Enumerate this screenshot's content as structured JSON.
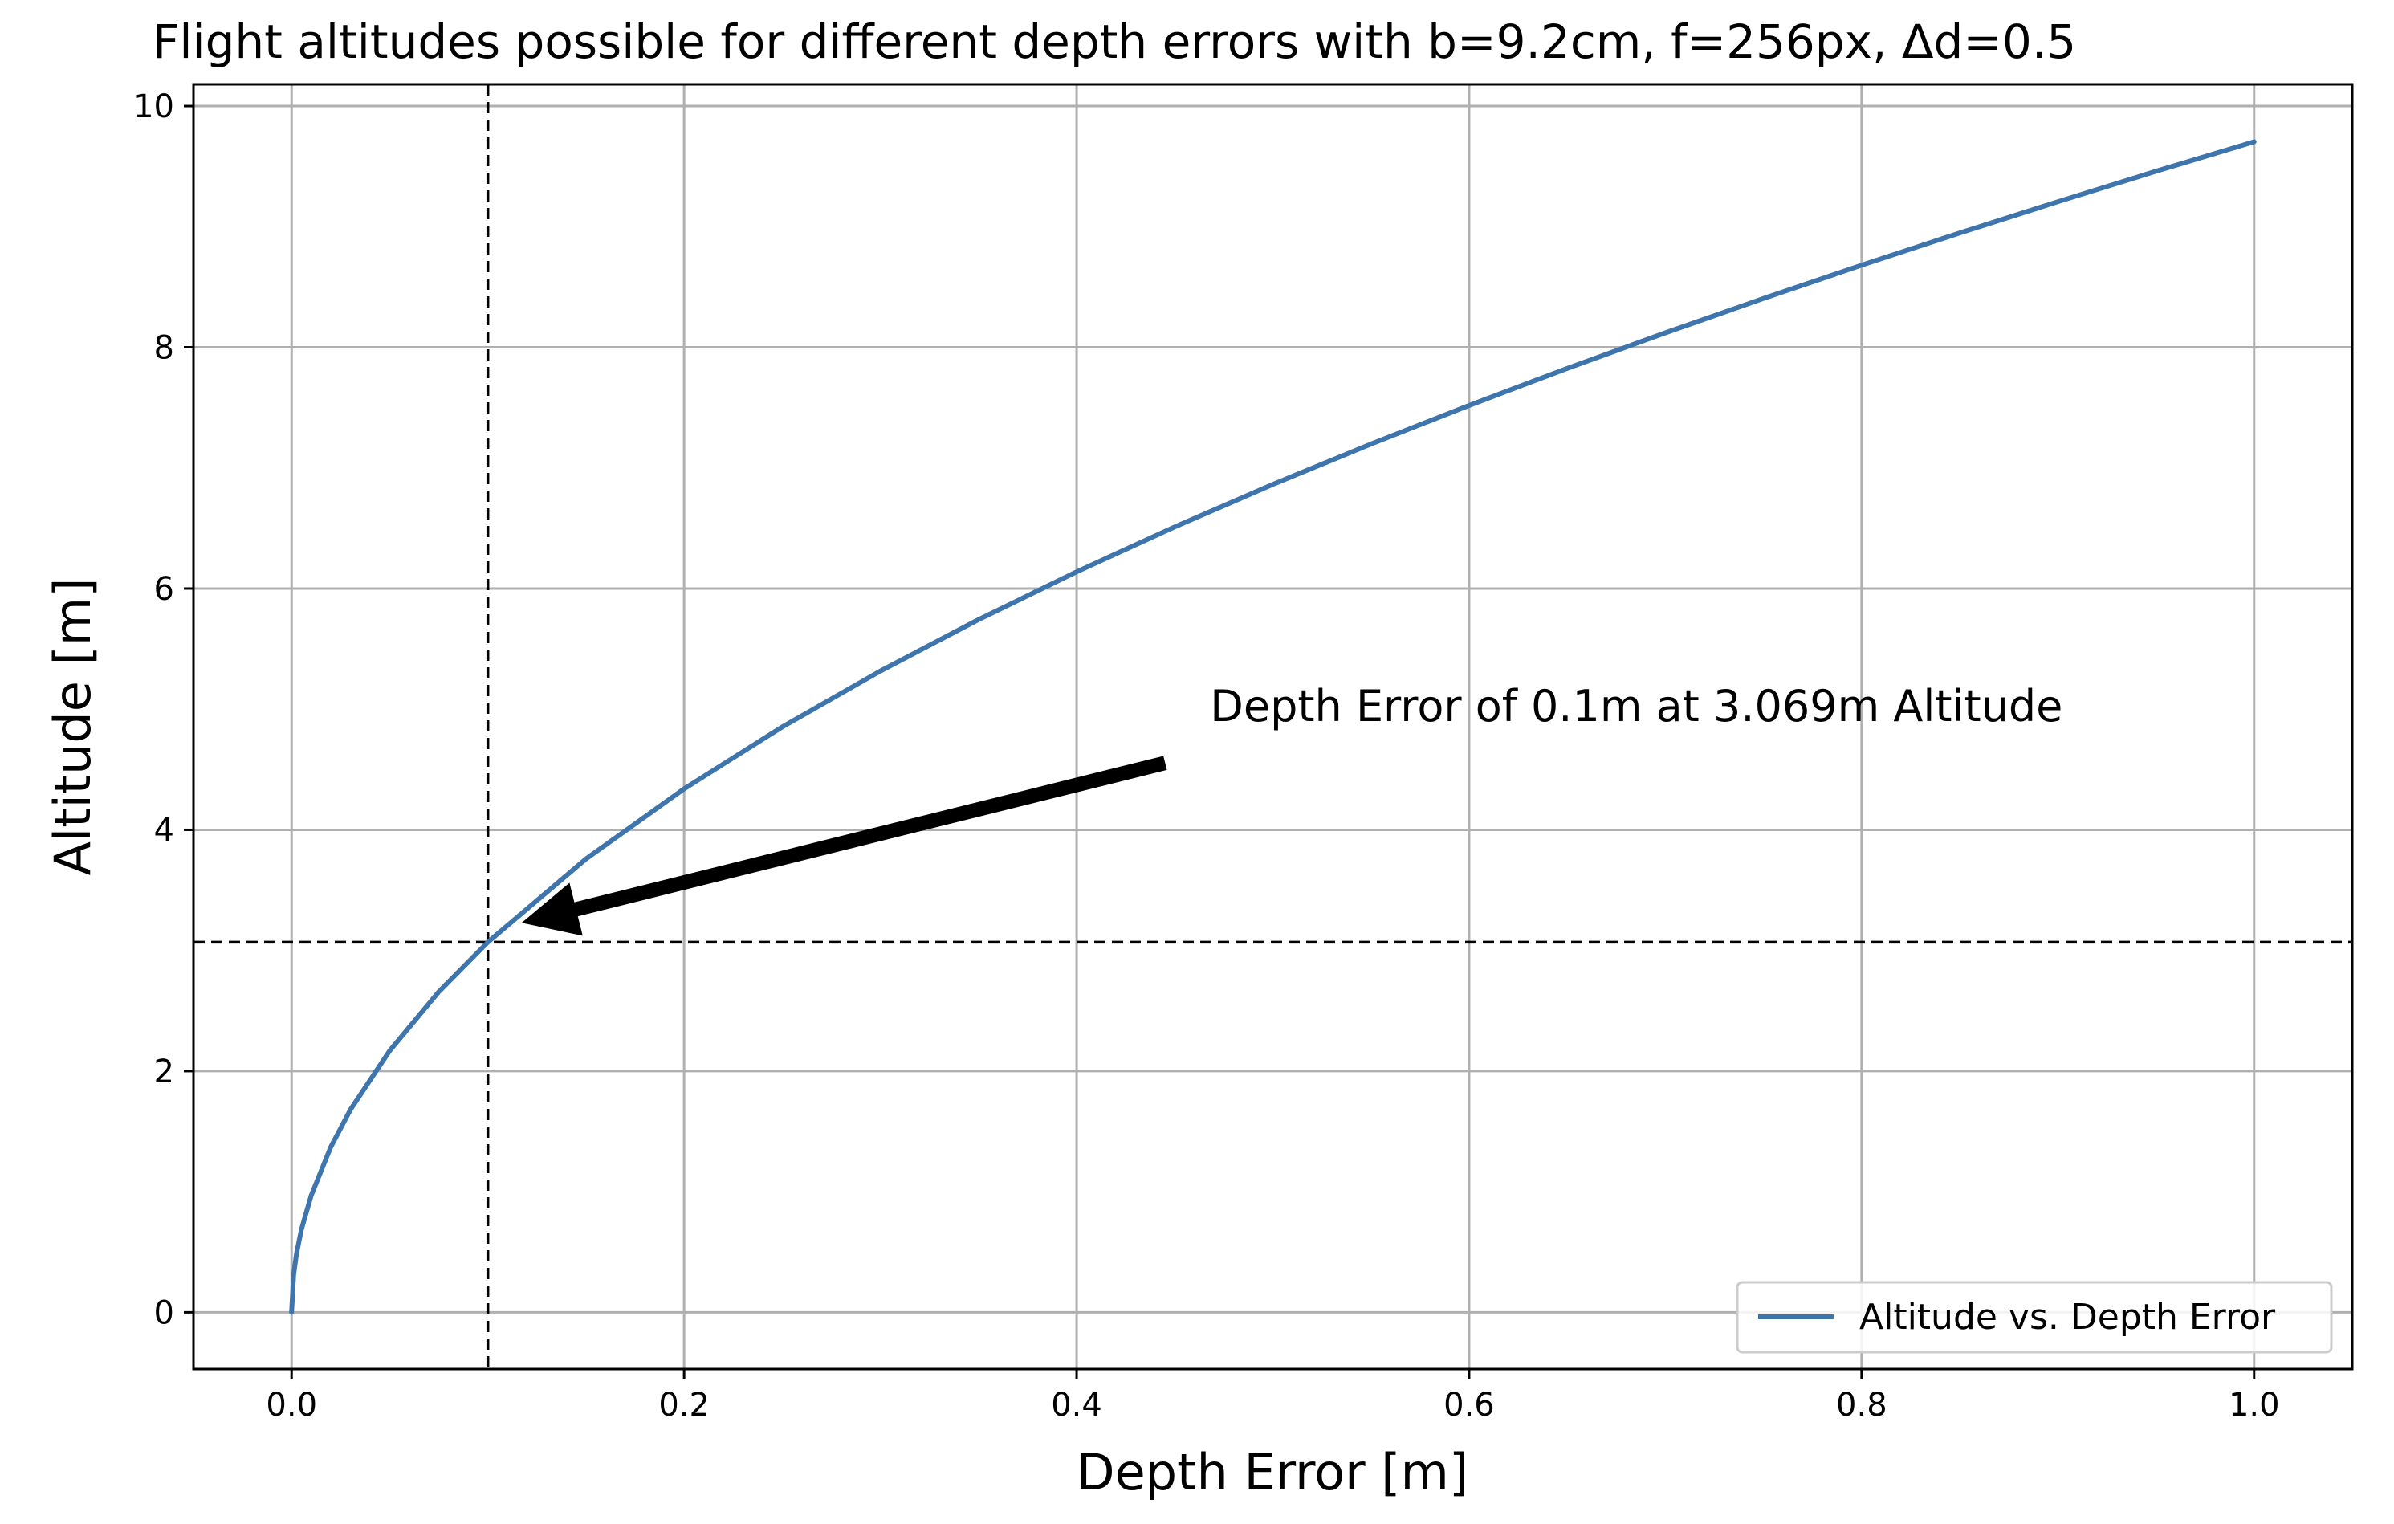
{
  "chart_data": {
    "type": "line",
    "title": "Flight altitudes possible for different depth errors with b=9.2cm, f=256px, Δd=0.5",
    "xlabel": "Depth Error [m]",
    "ylabel": "Altitude [m]",
    "xlim": [
      -0.05,
      1.05
    ],
    "ylim": [
      -0.47,
      10.18
    ],
    "xticks": [
      0.0,
      0.2,
      0.4,
      0.6,
      0.8,
      1.0
    ],
    "xtick_labels": [
      "0.0",
      "0.2",
      "0.4",
      "0.6",
      "0.8",
      "1.0"
    ],
    "yticks": [
      0,
      2,
      4,
      6,
      8,
      10
    ],
    "ytick_labels": [
      "0",
      "2",
      "4",
      "6",
      "8",
      "10"
    ],
    "grid": true,
    "legend_position": "lower-right",
    "series": [
      {
        "name": "Altitude vs. Depth Error",
        "color": "#3f75ad",
        "x": [
          0.0,
          0.001,
          0.0025,
          0.005,
          0.01,
          0.02,
          0.03,
          0.05,
          0.075,
          0.1,
          0.15,
          0.2,
          0.25,
          0.3,
          0.35,
          0.4,
          0.45,
          0.5,
          0.55,
          0.6,
          0.65,
          0.7,
          0.75,
          0.8,
          0.85,
          0.9,
          0.95,
          1.0
        ],
        "y": [
          0.0,
          0.307,
          0.485,
          0.686,
          0.97,
          1.372,
          1.681,
          2.17,
          2.658,
          3.069,
          3.759,
          4.34,
          4.853,
          5.316,
          5.742,
          6.138,
          6.511,
          6.863,
          7.198,
          7.518,
          7.825,
          8.12,
          8.405,
          8.681,
          8.948,
          9.207,
          9.459,
          9.704
        ]
      }
    ],
    "reference_lines": [
      {
        "orientation": "vertical",
        "value": 0.1,
        "style": "dashed",
        "color": "#000000"
      },
      {
        "orientation": "horizontal",
        "value": 3.069,
        "style": "dashed",
        "color": "#000000"
      }
    ],
    "annotations": [
      {
        "text": "Depth Error of 0.1m at 3.069m Altitude",
        "point": [
          0.1,
          3.069
        ],
        "text_at": [
          0.468,
          4.9
        ]
      }
    ]
  }
}
